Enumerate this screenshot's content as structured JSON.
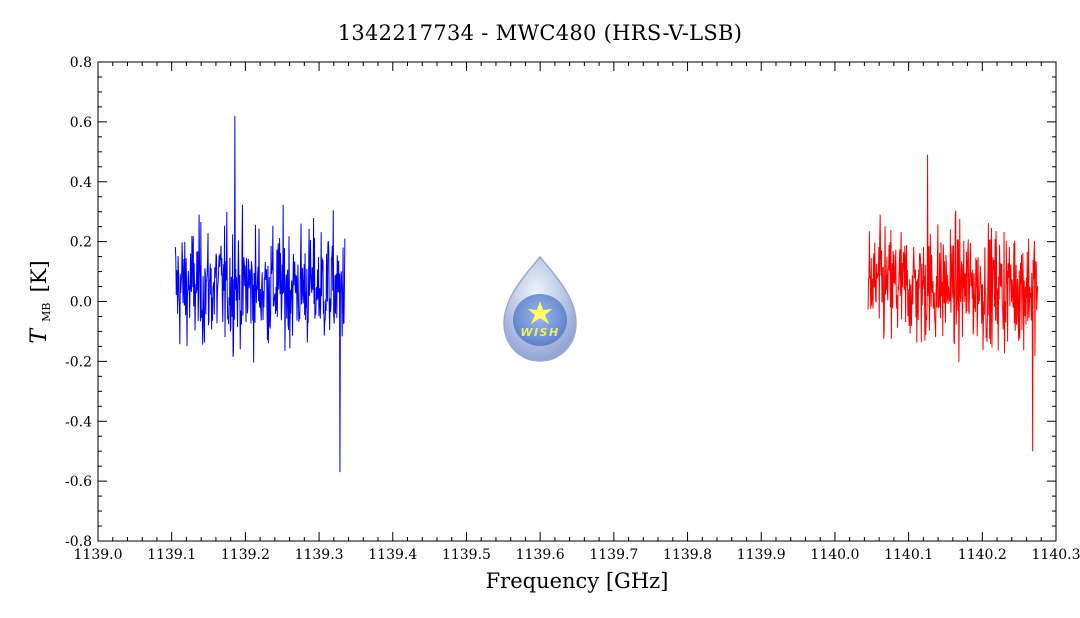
{
  "chart_data": {
    "type": "line",
    "title": "1342217734 - MWC480 (HRS-V-LSB)",
    "xlabel": "Frequency [GHz]",
    "ylabel": {
      "symbol": "T",
      "subscript": "MB",
      "unit": "[K]"
    },
    "xlim": [
      1139.0,
      1140.3
    ],
    "ylim": [
      -0.8,
      0.8
    ],
    "xticks": [
      "1139.0",
      "1139.1",
      "1139.2",
      "1139.3",
      "1139.4",
      "1139.5",
      "1139.6",
      "1139.7",
      "1139.8",
      "1139.9",
      "1140.0",
      "1140.1",
      "1140.2",
      "1140.3"
    ],
    "yticks": [
      "-0.8",
      "-0.6",
      "-0.4",
      "-0.2",
      "0.0",
      "0.2",
      "0.4",
      "0.6",
      "0.8"
    ],
    "grid": false,
    "legend": "none",
    "series": [
      {
        "color": "#0000ff",
        "x_range": [
          1139.105,
          1139.335
        ],
        "points": 380,
        "y_mean": 0.05,
        "y_min": -0.57,
        "y_max": 0.62
      },
      {
        "color": "#ff0000",
        "x_range": [
          1140.045,
          1140.275
        ],
        "points": 380,
        "y_mean": 0.05,
        "y_min": -0.5,
        "y_max": 0.49
      }
    ],
    "logo": {
      "text": "WISH"
    }
  }
}
